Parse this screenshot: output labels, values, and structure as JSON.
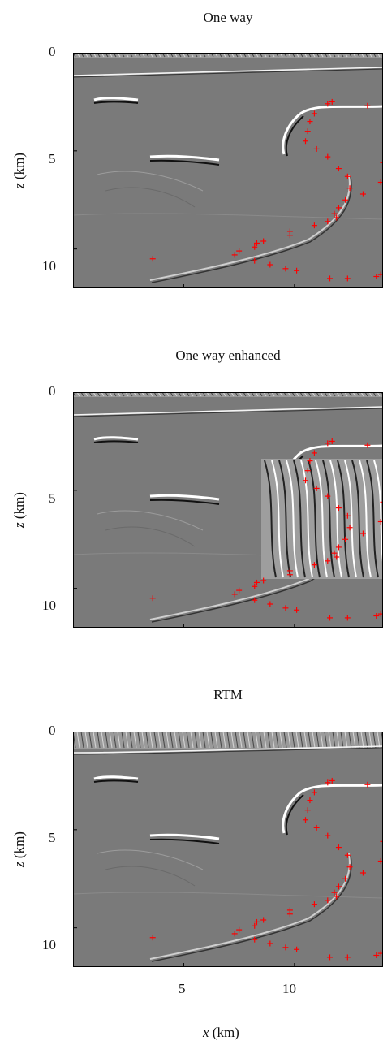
{
  "panels": [
    {
      "title": "One way"
    },
    {
      "title": "One way enhanced"
    },
    {
      "title": "RTM"
    }
  ],
  "chart_data": {
    "type": "scatter",
    "ylabel": "z (km)",
    "xlabel": "x (km)",
    "xlim": [
      0,
      14
    ],
    "ylim": [
      12,
      0
    ],
    "xticks": [
      "5",
      "10"
    ],
    "yticks": [
      "0",
      "5",
      "10"
    ],
    "colors": {
      "marker": "#ff0000",
      "background": "#7a7a7a"
    },
    "markers": [
      {
        "x": 11.5,
        "y": 2.6
      },
      {
        "x": 11.7,
        "y": 2.5
      },
      {
        "x": 13.3,
        "y": 2.7
      },
      {
        "x": 10.9,
        "y": 3.1
      },
      {
        "x": 10.7,
        "y": 3.5
      },
      {
        "x": 10.6,
        "y": 4.0
      },
      {
        "x": 10.5,
        "y": 4.5
      },
      {
        "x": 11.0,
        "y": 4.9
      },
      {
        "x": 11.5,
        "y": 5.3
      },
      {
        "x": 14.0,
        "y": 5.6
      },
      {
        "x": 12.0,
        "y": 5.9
      },
      {
        "x": 12.4,
        "y": 6.3
      },
      {
        "x": 13.9,
        "y": 6.6
      },
      {
        "x": 12.5,
        "y": 6.9
      },
      {
        "x": 13.1,
        "y": 7.2
      },
      {
        "x": 12.3,
        "y": 7.5
      },
      {
        "x": 12.0,
        "y": 7.9
      },
      {
        "x": 11.8,
        "y": 8.2
      },
      {
        "x": 11.9,
        "y": 8.4
      },
      {
        "x": 11.5,
        "y": 8.6
      },
      {
        "x": 10.9,
        "y": 8.8
      },
      {
        "x": 9.8,
        "y": 9.1
      },
      {
        "x": 9.8,
        "y": 9.3
      },
      {
        "x": 8.6,
        "y": 9.6
      },
      {
        "x": 8.3,
        "y": 9.7
      },
      {
        "x": 8.2,
        "y": 9.9
      },
      {
        "x": 7.5,
        "y": 10.1
      },
      {
        "x": 7.3,
        "y": 10.3
      },
      {
        "x": 3.6,
        "y": 10.5
      },
      {
        "x": 8.2,
        "y": 10.6
      },
      {
        "x": 8.9,
        "y": 10.8
      },
      {
        "x": 9.6,
        "y": 11.0
      },
      {
        "x": 10.1,
        "y": 11.1
      },
      {
        "x": 11.6,
        "y": 11.5
      },
      {
        "x": 12.4,
        "y": 11.5
      },
      {
        "x": 13.7,
        "y": 11.4
      },
      {
        "x": 13.9,
        "y": 11.3
      }
    ]
  }
}
